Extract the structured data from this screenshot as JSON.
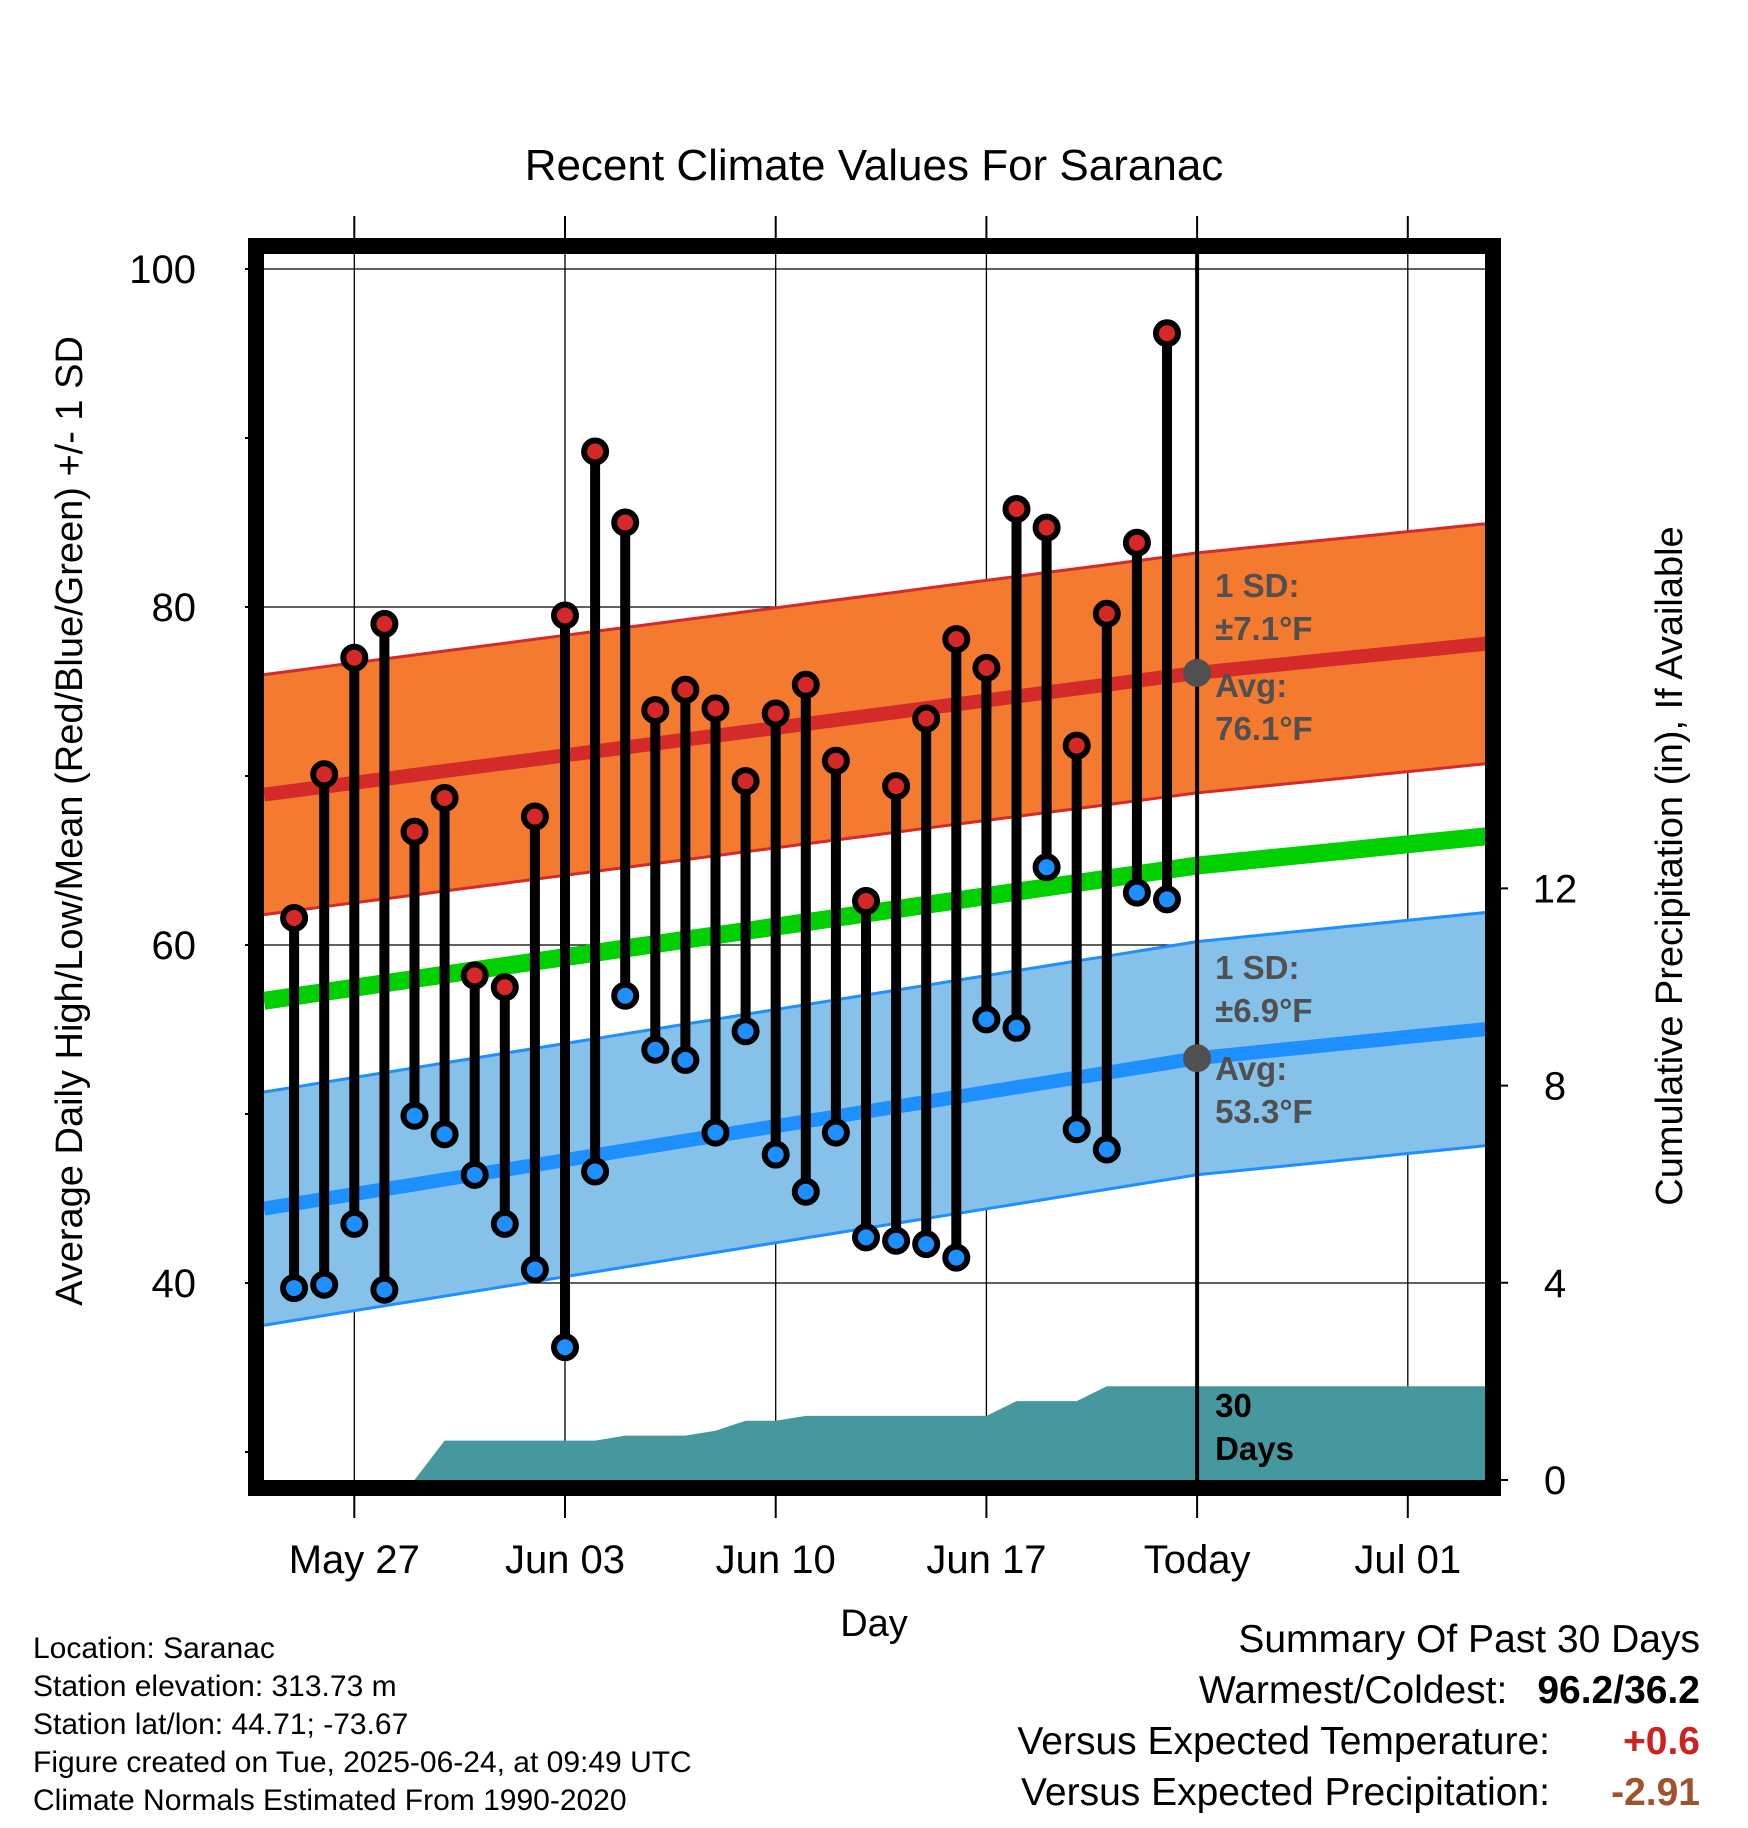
{
  "chart_data": {
    "type": "line",
    "title": "Recent Climate Values For Saranac",
    "xlabel": "Day",
    "ylabel": "Average Daily High/Low/Mean (Red/Blue/Green) +/- 1 SD",
    "ylabel_right": "Cumulative Precipitation (in), If Available",
    "ylim": [
      28,
      102
    ],
    "ylim_right": [
      0,
      19.8
    ],
    "y_ticks": [
      40,
      60,
      80,
      100
    ],
    "y_ticks_right": [
      0,
      4,
      8,
      12
    ],
    "x_tick_labels": [
      "May 27",
      "Jun 03",
      "Jun 10",
      "Jun 17",
      "Today",
      "Jul 01"
    ],
    "today_index": 30,
    "days_label": "30 Days",
    "observed": {
      "highs": [
        61.6,
        70.1,
        77.0,
        79.0,
        66.7,
        68.7,
        58.2,
        57.5,
        67.6,
        79.5,
        89.2,
        85.0,
        73.9,
        75.1,
        74.0,
        69.7,
        73.7,
        75.4,
        70.9,
        62.6,
        69.4,
        73.4,
        78.1,
        76.4,
        85.8,
        84.7,
        71.8,
        79.6,
        83.8,
        96.2
      ],
      "lows": [
        39.7,
        39.9,
        43.5,
        39.6,
        49.9,
        48.8,
        46.4,
        43.5,
        40.8,
        36.2,
        46.6,
        57.0,
        53.8,
        53.2,
        48.9,
        54.9,
        47.6,
        45.4,
        48.9,
        42.7,
        42.5,
        42.3,
        41.5,
        55.6,
        55.1,
        64.6,
        49.1,
        47.9,
        63.1,
        62.7
      ]
    },
    "normal_high": {
      "start": 68.9,
      "today": 76.1,
      "end": 77.9,
      "sd": 7.1,
      "sd_label": "1 SD:",
      "sd_text": "±7.1°F",
      "avg_label": "Avg:",
      "avg_text": "76.1°F"
    },
    "normal_low": {
      "start": 44.4,
      "today": 53.3,
      "end": 55.1,
      "sd": 6.9,
      "sd_label": "1 SD:",
      "sd_text": "±6.9°F",
      "avg_label": "Avg:",
      "avg_text": "53.3°F"
    },
    "normal_mean": {
      "start": 56.7,
      "today": 64.7,
      "end": 66.5
    },
    "precip_cumulative": [
      0,
      0,
      0,
      0,
      0,
      0,
      0.8,
      0.8,
      0.8,
      0.8,
      0.8,
      0.8,
      0.9,
      0.9,
      0.9,
      1.0,
      1.2,
      1.2,
      1.3,
      1.3,
      1.3,
      1.3,
      1.3,
      1.3,
      1.3,
      1.6,
      1.6,
      1.6,
      1.9,
      1.9,
      1.9,
      1.9,
      1.9,
      1.9,
      1.9,
      1.9,
      1.9,
      1.9,
      1.9,
      1.9,
      1.9,
      1.9
    ],
    "grid": true,
    "colors": {
      "high_band": "#f47a2f",
      "high_line": "#d42a2a",
      "low_band": "#85c1e9",
      "low_line": "#1e8fff",
      "mean_line": "#00d000",
      "precip_fill": "#45999e",
      "high_marker": "#d62828",
      "low_marker": "#1e8fff"
    }
  },
  "station_info": [
    "Location: Saranac",
    "Station elevation: 313.73 m",
    "Station lat/lon: 44.71; -73.67",
    "Figure created on Tue, 2025-06-24, at 09:49 UTC",
    "Climate Normals Estimated From 1990-2020"
  ],
  "summary": {
    "title": "Summary Of Past 30 Days",
    "warmest_coldest_label": "Warmest/Coldest:",
    "warmest_coldest_value": "96.2/36.2",
    "temp_label": "Versus Expected Temperature:",
    "temp_value": "+0.6",
    "temp_color": "#cc2222",
    "precip_label": "Versus Expected Precipitation:",
    "precip_value": "-2.91",
    "precip_color": "#a0522d"
  }
}
